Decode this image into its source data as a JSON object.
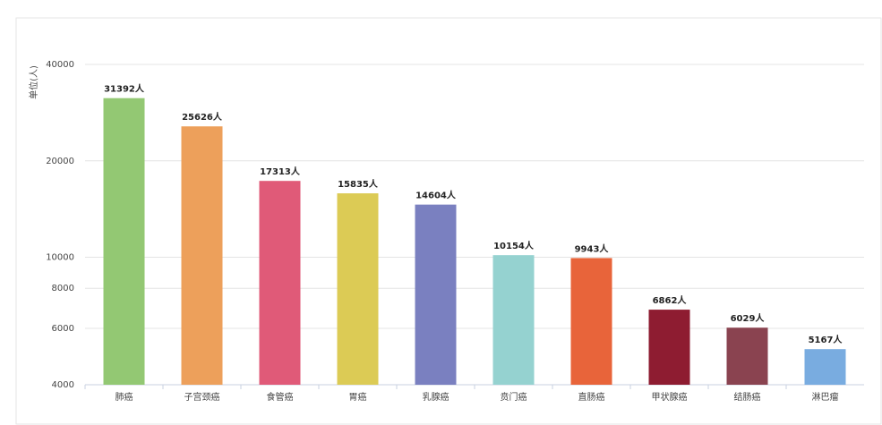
{
  "chart_data": {
    "type": "bar",
    "y_label": "单位(人)",
    "categories": [
      "肺癌",
      "子宫颈癌",
      "食管癌",
      "胃癌",
      "乳腺癌",
      "贲门癌",
      "直肠癌",
      "甲状腺癌",
      "结肠癌",
      "淋巴瘤"
    ],
    "values": [
      31392,
      25626,
      17313,
      15835,
      14604,
      10154,
      9943,
      6862,
      6029,
      5167
    ],
    "value_labels": [
      "31392人",
      "25626人",
      "17313人",
      "15835人",
      "14604人",
      "10154人",
      "9943人",
      "6862人",
      "6029人",
      "5167人"
    ],
    "colors": [
      "#93c873",
      "#eda05b",
      "#e05a78",
      "#dccb55",
      "#7a80c0",
      "#95d2d0",
      "#e8643a",
      "#8e1c31",
      "#8a4350",
      "#79ace0"
    ],
    "ylim": [
      4000,
      40000
    ],
    "yticks": [
      4000,
      6000,
      8000,
      10000,
      20000,
      40000
    ],
    "log_scale": true,
    "grid": true
  }
}
